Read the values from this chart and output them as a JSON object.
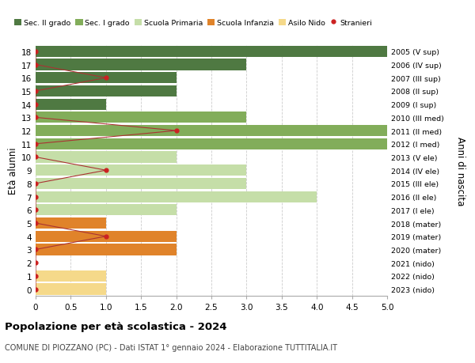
{
  "ages": [
    18,
    17,
    16,
    15,
    14,
    13,
    12,
    11,
    10,
    9,
    8,
    7,
    6,
    5,
    4,
    3,
    2,
    1,
    0
  ],
  "bar_values": [
    5.0,
    3.0,
    2.0,
    2.0,
    1.0,
    3.0,
    5.0,
    5.0,
    2.0,
    3.0,
    3.0,
    4.0,
    2.0,
    1.0,
    2.0,
    2.0,
    0.0,
    1.0,
    1.0
  ],
  "stranieri": [
    0,
    0,
    1,
    0,
    0,
    0,
    2,
    0,
    0,
    1,
    0,
    0,
    0,
    0,
    1,
    0,
    0,
    0,
    0
  ],
  "right_labels": [
    "2005 (V sup)",
    "2006 (IV sup)",
    "2007 (III sup)",
    "2008 (II sup)",
    "2009 (I sup)",
    "2010 (III med)",
    "2011 (II med)",
    "2012 (I med)",
    "2013 (V ele)",
    "2014 (IV ele)",
    "2015 (III ele)",
    "2016 (II ele)",
    "2017 (I ele)",
    "2018 (mater)",
    "2019 (mater)",
    "2020 (mater)",
    "2021 (nido)",
    "2022 (nido)",
    "2023 (nido)"
  ],
  "bar_colors": [
    "#4f7942",
    "#4f7942",
    "#4f7942",
    "#4f7942",
    "#4f7942",
    "#82ad5a",
    "#82ad5a",
    "#82ad5a",
    "#c5dea8",
    "#c5dea8",
    "#c5dea8",
    "#c5dea8",
    "#c5dea8",
    "#e0832a",
    "#e0832a",
    "#e0832a",
    "#f5d98a",
    "#f5d98a",
    "#f5d98a"
  ],
  "legend_labels": [
    "Sec. II grado",
    "Sec. I grado",
    "Scuola Primaria",
    "Scuola Infanzia",
    "Asilo Nido",
    "Stranieri"
  ],
  "legend_colors": [
    "#4f7942",
    "#82ad5a",
    "#c5dea8",
    "#e0832a",
    "#f5d98a",
    "#cc2222"
  ],
  "stranieri_color": "#cc2222",
  "stranieri_line_color": "#aa3333",
  "title": "Popolazione per età scolastica - 2024",
  "subtitle": "COMUNE DI PIOZZANO (PC) - Dati ISTAT 1° gennaio 2024 - Elaborazione TUTTITALIA.IT",
  "ylabel_left": "Età alunni",
  "ylabel_right": "Anni di nascita",
  "xlim": [
    0,
    5.0
  ],
  "ylim": [
    -0.5,
    18.5
  ],
  "bg_color": "#ffffff",
  "grid_color": "#cccccc",
  "bar_height": 0.85,
  "xticks": [
    0,
    0.5,
    1.0,
    1.5,
    2.0,
    2.5,
    3.0,
    3.5,
    4.0,
    4.5,
    5.0
  ],
  "xticklabels": [
    "0",
    "0.5",
    "1.0",
    "1.5",
    "2.0",
    "2.5",
    "3.0",
    "3.5",
    "4.0",
    "4.5",
    "5.0"
  ]
}
